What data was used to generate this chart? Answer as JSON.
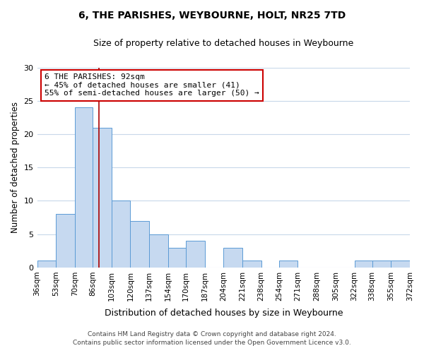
{
  "title": "6, THE PARISHES, WEYBOURNE, HOLT, NR25 7TD",
  "subtitle": "Size of property relative to detached houses in Weybourne",
  "xlabel": "Distribution of detached houses by size in Weybourne",
  "ylabel": "Number of detached properties",
  "bin_edges": [
    36,
    53,
    70,
    86,
    103,
    120,
    137,
    154,
    170,
    187,
    204,
    221,
    238,
    254,
    271,
    288,
    305,
    322,
    338,
    355,
    372
  ],
  "bar_heights": [
    1,
    8,
    24,
    21,
    10,
    7,
    5,
    3,
    4,
    0,
    3,
    1,
    0,
    1,
    0,
    0,
    0,
    1,
    1,
    1
  ],
  "bar_color": "#c6d9f0",
  "bar_edge_color": "#5b9bd5",
  "property_size": 92,
  "ylim": [
    0,
    30
  ],
  "yticks": [
    0,
    5,
    10,
    15,
    20,
    25,
    30
  ],
  "annotation_title": "6 THE PARISHES: 92sqm",
  "annotation_line1": "← 45% of detached houses are smaller (41)",
  "annotation_line2": "55% of semi-detached houses are larger (50) →",
  "red_line_color": "#aa0000",
  "annotation_box_color": "#ffffff",
  "annotation_box_edge": "#cc0000",
  "footer_line1": "Contains HM Land Registry data © Crown copyright and database right 2024.",
  "footer_line2": "Contains public sector information licensed under the Open Government Licence v3.0.",
  "background_color": "#ffffff",
  "grid_color": "#c8d8ea"
}
